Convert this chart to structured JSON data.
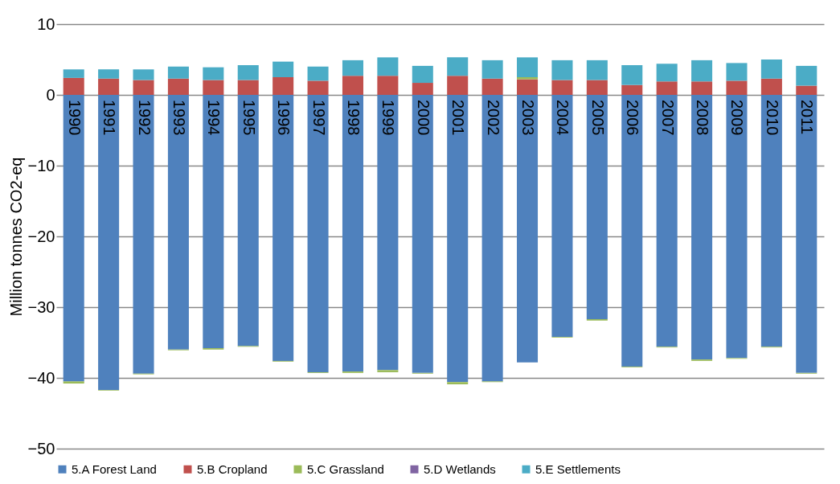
{
  "chart_data": {
    "type": "bar",
    "stacked": true,
    "ylabel": "Million tonnes CO2-eq",
    "categories": [
      "1990",
      "1991",
      "1992",
      "1993",
      "1994",
      "1995",
      "1996",
      "1997",
      "1998",
      "1999",
      "2000",
      "2001",
      "2002",
      "2003",
      "2004",
      "2005",
      "2006",
      "2007",
      "2008",
      "2009",
      "2010",
      "2011"
    ],
    "series": [
      {
        "name": "5.A Forest Land",
        "color": "#4f81bd",
        "values": [
          -40.5,
          -41.7,
          -39.4,
          -36.0,
          -35.8,
          -35.5,
          -37.6,
          -39.2,
          -39.1,
          -38.9,
          -39.3,
          -40.6,
          -40.5,
          -37.8,
          -34.2,
          -31.7,
          -38.4,
          -35.6,
          -37.4,
          -37.2,
          -35.6,
          -39.3
        ]
      },
      {
        "name": "5.B Cropland",
        "color": "#c0504d",
        "values": [
          2.4,
          2.3,
          2.1,
          2.3,
          2.1,
          2.1,
          2.5,
          2.0,
          2.7,
          2.7,
          1.7,
          2.7,
          2.3,
          2.2,
          2.1,
          2.1,
          1.4,
          1.9,
          1.9,
          2.0,
          2.3,
          1.3
        ]
      },
      {
        "name": "5.C Grassland",
        "color": "#9bbb59",
        "values": [
          -0.3,
          -0.1,
          -0.1,
          -0.1,
          -0.2,
          -0.1,
          -0.1,
          -0.1,
          -0.2,
          -0.3,
          -0.1,
          -0.3,
          -0.1,
          0.3,
          -0.1,
          -0.2,
          -0.1,
          -0.1,
          -0.2,
          -0.1,
          -0.1,
          -0.1
        ]
      },
      {
        "name": "5.D Wetlands",
        "color": "#8064a2",
        "values": [
          0,
          0,
          0,
          0,
          0,
          0,
          0,
          0,
          0,
          0,
          0,
          0,
          0,
          0,
          0,
          0,
          0,
          0,
          0,
          0,
          0,
          0
        ]
      },
      {
        "name": "5.E Settlements",
        "color": "#4bacc6",
        "values": [
          1.2,
          1.3,
          1.5,
          1.7,
          1.8,
          2.1,
          2.2,
          2.0,
          2.2,
          2.6,
          2.4,
          2.6,
          2.6,
          2.8,
          2.8,
          2.8,
          2.8,
          2.5,
          3.0,
          2.5,
          2.7,
          2.8
        ]
      }
    ],
    "ylim": [
      -50,
      10
    ],
    "yticks": [
      -50,
      -40,
      -30,
      -20,
      -10,
      0,
      10
    ],
    "grid": "y",
    "legend": "bottom"
  }
}
